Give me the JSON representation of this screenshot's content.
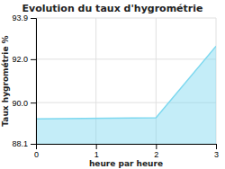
{
  "chart_data": {
    "type": "area",
    "title": "Evolution du taux d'hygrométrie",
    "x_label": "heure par heure",
    "y_label": "Taux hygrométrie %",
    "x": [
      0,
      2,
      3
    ],
    "values": [
      89.25,
      89.3,
      92.6
    ],
    "color": "#7dd8ef",
    "xlim": [
      0,
      3
    ],
    "ylim": [
      88.1,
      93.9
    ],
    "xticks": [
      0,
      1,
      2,
      3
    ],
    "yticks": [
      88.1,
      {
        "value": 90.0,
        "label": "90.0"
      },
      {
        "value": 92.0,
        "label": "92.0"
      },
      93.9
    ],
    "grid": true
  }
}
